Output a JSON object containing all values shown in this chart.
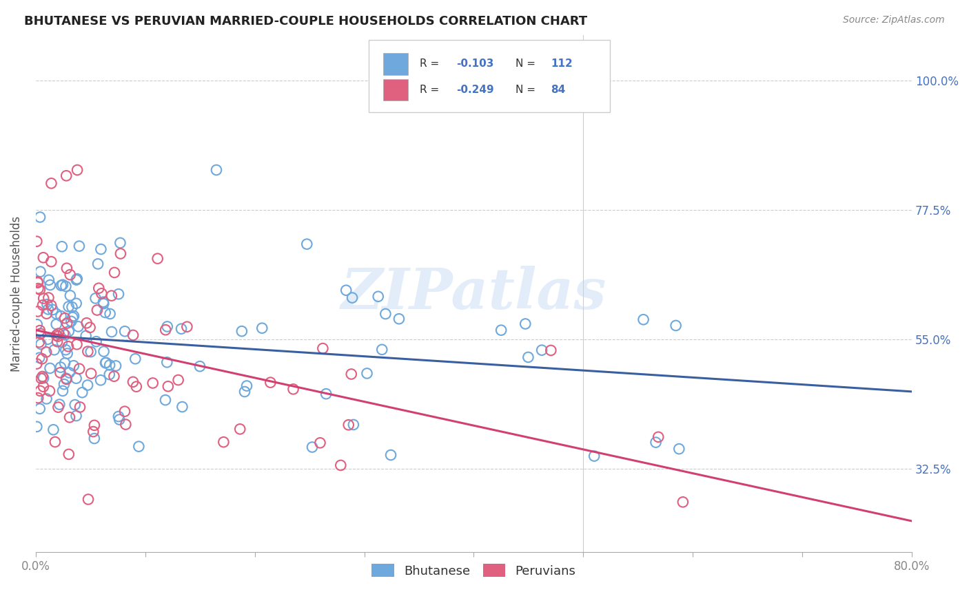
{
  "title": "BHUTANESE VS PERUVIAN MARRIED-COUPLE HOUSEHOLDS CORRELATION CHART",
  "source": "Source: ZipAtlas.com",
  "ylabel": "Married-couple Households",
  "ytick_values": [
    1.0,
    0.775,
    0.55,
    0.325
  ],
  "ytick_labels": [
    "100.0%",
    "77.5%",
    "55.0%",
    "32.5%"
  ],
  "bhutanese_color": "#6fa8dc",
  "peruvian_color": "#e06080",
  "bhutanese_line_color": "#3a5fa0",
  "peruvian_line_color": "#d04070",
  "background_color": "#ffffff",
  "watermark": "ZIPatlas",
  "xlim": [
    0.0,
    0.8
  ],
  "ylim": [
    0.18,
    1.08
  ],
  "R_blue": -0.103,
  "N_blue": 112,
  "R_pink": -0.249,
  "N_pink": 84,
  "legend_R_N_color": "#4472c4",
  "legend_R_label_color": "#333333",
  "grid_color": "#cccccc",
  "tick_label_color": "#888888",
  "ylabel_color": "#555555",
  "title_color": "#222222",
  "source_color": "#888888"
}
